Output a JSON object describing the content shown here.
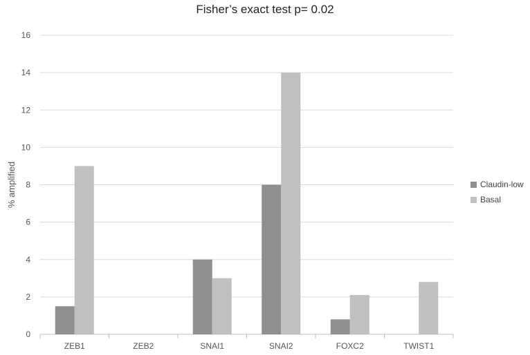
{
  "chart_data": {
    "type": "bar",
    "title": "Fisher’s exact test p= 0.02",
    "xlabel": "",
    "ylabel": "% amplified",
    "categories": [
      "ZEB1",
      "ZEB2",
      "SNAI1",
      "SNAI2",
      "FOXC2",
      "TWIST1"
    ],
    "series": [
      {
        "name": "Claudin-low",
        "color": "#8f8f8f",
        "values": [
          1.5,
          0,
          4,
          8,
          0.8,
          0
        ]
      },
      {
        "name": "Basal",
        "color": "#c0c0c0",
        "values": [
          9,
          0,
          3,
          14,
          2.1,
          2.8
        ]
      }
    ],
    "ylim": [
      0,
      16
    ],
    "yticks": [
      0,
      2,
      4,
      6,
      8,
      10,
      12,
      14,
      16
    ],
    "grid": true,
    "legend_position": "right"
  }
}
